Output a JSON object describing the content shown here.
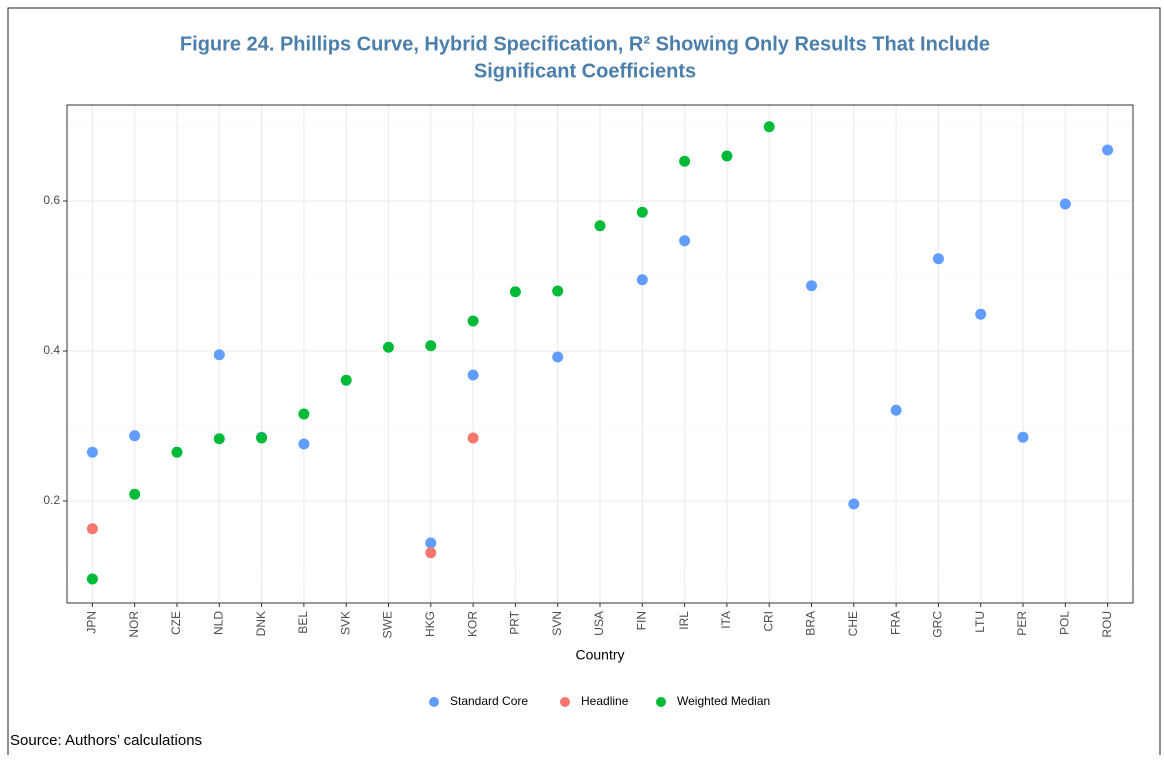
{
  "chart_data": {
    "type": "scatter",
    "title": [
      "Figure 24. Phillips Curve, Hybrid Specification, R² Showing Only Results That Include",
      "Significant Coefficients"
    ],
    "x_label": "Country",
    "categories": [
      "JPN",
      "NOR",
      "CZE",
      "NLD",
      "DNK",
      "BEL",
      "SVK",
      "SWE",
      "HKG",
      "KOR",
      "PRT",
      "SVN",
      "USA",
      "FIN",
      "IRL",
      "ITA",
      "CRI",
      "BRA",
      "CHE",
      "FRA",
      "GRC",
      "LTU",
      "PER",
      "POL",
      "ROU"
    ],
    "series": [
      {
        "name": "Standard Core",
        "color": "#619cff",
        "values": [
          0.265,
          0.287,
          null,
          0.395,
          0.285,
          0.276,
          null,
          null,
          0.144,
          0.368,
          null,
          0.392,
          null,
          0.495,
          0.547,
          null,
          null,
          0.487,
          0.196,
          0.321,
          0.523,
          0.449,
          0.285,
          0.596,
          0.668
        ]
      },
      {
        "name": "Headline",
        "color": "#f8766d",
        "values": [
          0.163,
          null,
          null,
          null,
          null,
          null,
          null,
          null,
          0.131,
          0.284,
          null,
          null,
          null,
          null,
          null,
          null,
          null,
          null,
          null,
          null,
          null,
          null,
          null,
          null,
          null
        ]
      },
      {
        "name": "Weighted Median",
        "color": "#00ba38",
        "values": [
          0.096,
          0.209,
          0.265,
          0.283,
          0.284,
          0.316,
          0.361,
          0.405,
          0.407,
          0.44,
          0.479,
          0.48,
          0.567,
          0.585,
          0.653,
          0.66,
          0.699,
          null,
          null,
          null,
          null,
          null,
          null,
          null,
          null
        ]
      }
    ],
    "ylim": [
      0.064,
      0.728
    ],
    "yticks": [
      0.2,
      0.4,
      0.6
    ],
    "grid": true,
    "legend": "bottom"
  },
  "source": "Source: Authors’ calculations"
}
